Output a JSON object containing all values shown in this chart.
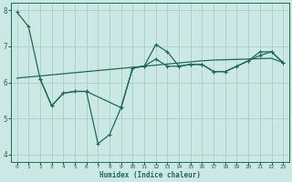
{
  "xlabel": "Humidex (Indice chaleur)",
  "xlim": [
    -0.5,
    23.5
  ],
  "ylim": [
    3.8,
    8.2
  ],
  "yticks": [
    4,
    5,
    6,
    7,
    8
  ],
  "xticks": [
    0,
    1,
    2,
    3,
    4,
    5,
    6,
    7,
    8,
    9,
    10,
    11,
    12,
    13,
    14,
    15,
    16,
    17,
    18,
    19,
    20,
    21,
    22,
    23
  ],
  "bg_color": "#cce8e4",
  "grid_color": "#a8cfc9",
  "line_color": "#1a6b5a",
  "line1_x": [
    0,
    1,
    2,
    3,
    4,
    5,
    6,
    7,
    8,
    9,
    10,
    11,
    12,
    13,
    14,
    15,
    16,
    17,
    18,
    19,
    20,
    21,
    22,
    23
  ],
  "line1_y": [
    7.95,
    7.55,
    6.1,
    5.35,
    5.7,
    5.75,
    5.75,
    4.3,
    4.55,
    5.3,
    6.4,
    6.45,
    7.05,
    6.85,
    6.45,
    6.5,
    6.5,
    6.3,
    6.3,
    6.45,
    6.6,
    6.85,
    6.85,
    6.55
  ],
  "line2_x": [
    2,
    3,
    4,
    5,
    6,
    9,
    10,
    11,
    12,
    13,
    14,
    15,
    16,
    17,
    18,
    19,
    20,
    21,
    22,
    23
  ],
  "line2_y": [
    6.1,
    5.35,
    5.7,
    5.75,
    5.75,
    5.3,
    6.4,
    6.45,
    6.65,
    6.45,
    6.45,
    6.5,
    6.5,
    6.3,
    6.3,
    6.45,
    6.6,
    6.75,
    6.85,
    6.55
  ],
  "line3_x": [
    0,
    1,
    2,
    3,
    4,
    5,
    6,
    7,
    8,
    9,
    10,
    11,
    12,
    13,
    14,
    15,
    16,
    17,
    18,
    19,
    20,
    21,
    22,
    23
  ],
  "line3_y": [
    6.12,
    6.15,
    6.18,
    6.21,
    6.24,
    6.27,
    6.3,
    6.33,
    6.36,
    6.39,
    6.42,
    6.45,
    6.48,
    6.51,
    6.54,
    6.57,
    6.6,
    6.62,
    6.63,
    6.64,
    6.65,
    6.66,
    6.67,
    6.55
  ]
}
